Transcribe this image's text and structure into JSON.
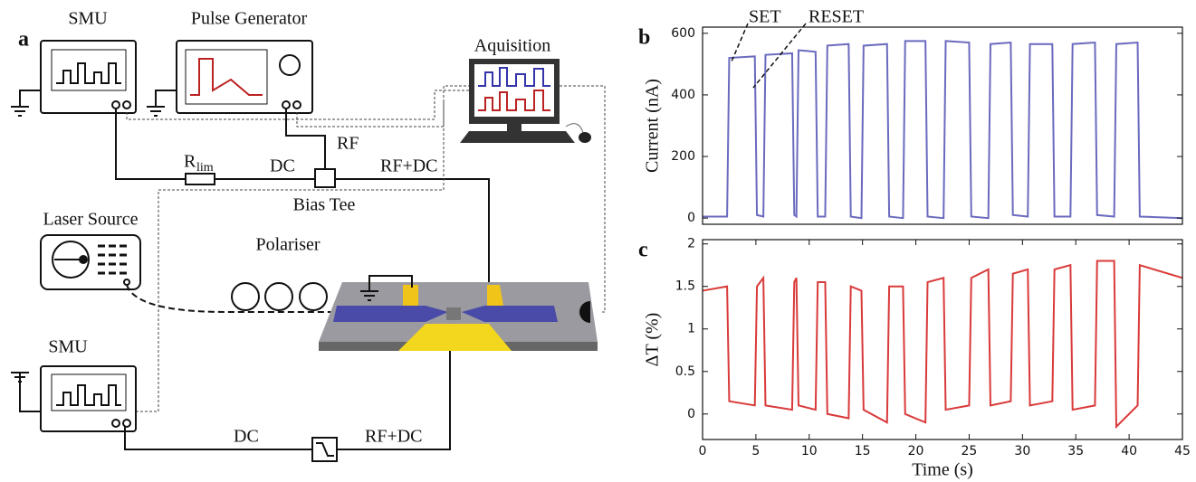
{
  "panel_label": "a",
  "schematic": {
    "smu_top": "SMU",
    "pulse_generator": "Pulse Generator",
    "acquisition": "Aquisition",
    "rf": "RF",
    "r": "R",
    "r_sub": "lim",
    "dc_top": "DC",
    "rf_dc_top": "RF+DC",
    "bias_tee": "Bias Tee",
    "laser_source": "Laser Source",
    "polariser": "Polariser",
    "smu_bottom": "SMU",
    "dc_bottom": "DC",
    "rf_dc_bottom": "RF+DC"
  },
  "chart_data": [
    {
      "type": "line",
      "panel_label": "b",
      "y_label": "Current (nA)",
      "annotations": [
        "SET",
        "RESET"
      ],
      "xlim": [
        0,
        45
      ],
      "ylim": [
        -20,
        620
      ],
      "yticks": [
        0,
        200,
        400,
        600
      ],
      "x": [
        0,
        2.3,
        2.5,
        4.9,
        5.1,
        5.7,
        5.9,
        8.4,
        8.6,
        8.8,
        9.0,
        10.6,
        10.8,
        11.5,
        11.7,
        13.7,
        13.9,
        14.9,
        15.1,
        17.3,
        17.5,
        18.8,
        19.0,
        20.9,
        21.1,
        22.6,
        22.8,
        25.0,
        25.2,
        26.8,
        27.0,
        28.9,
        29.1,
        30.5,
        30.7,
        32.8,
        33.0,
        34.5,
        34.7,
        36.8,
        37.0,
        38.6,
        38.8,
        40.8,
        41.0,
        45
      ],
      "series": [
        {
          "color": "#6a6abf",
          "values": [
            5,
            5,
            520,
            525,
            10,
            5,
            530,
            535,
            10,
            5,
            545,
            540,
            5,
            5,
            560,
            565,
            5,
            0,
            560,
            565,
            5,
            0,
            575,
            575,
            5,
            0,
            575,
            570,
            5,
            0,
            565,
            570,
            10,
            5,
            565,
            565,
            5,
            5,
            565,
            570,
            10,
            5,
            565,
            570,
            5,
            0
          ]
        }
      ]
    },
    {
      "type": "line",
      "panel_label": "c",
      "y_label": "ΔT (%)",
      "x_label": "Time (s)",
      "xlim": [
        0,
        45
      ],
      "ylim": [
        -0.3,
        2.05
      ],
      "yticks": [
        0,
        0.5,
        1,
        1.5,
        2
      ],
      "xticks": [
        0,
        5,
        10,
        15,
        20,
        25,
        30,
        35,
        40,
        45
      ],
      "x": [
        0,
        2.3,
        2.5,
        4.9,
        5.1,
        5.7,
        5.9,
        8.4,
        8.6,
        8.8,
        9.0,
        10.6,
        10.8,
        11.5,
        11.7,
        13.7,
        13.9,
        14.9,
        15.1,
        17.3,
        17.5,
        18.8,
        19.0,
        20.9,
        21.1,
        22.6,
        22.8,
        25.0,
        25.2,
        26.8,
        27.0,
        28.9,
        29.1,
        30.5,
        30.7,
        32.8,
        33.0,
        34.5,
        34.7,
        36.8,
        37.0,
        38.6,
        38.8,
        40.8,
        41.0,
        45
      ],
      "series": [
        {
          "color": "#d93a3a",
          "values": [
            1.45,
            1.5,
            0.15,
            0.1,
            1.5,
            1.6,
            0.1,
            0.05,
            1.55,
            1.6,
            0.1,
            0.05,
            1.55,
            1.55,
            0,
            -0.05,
            1.5,
            1.45,
            0.05,
            -0.1,
            1.5,
            1.5,
            0,
            -0.1,
            1.55,
            1.6,
            0.05,
            0.1,
            1.6,
            1.7,
            0.1,
            0.15,
            1.65,
            1.7,
            0.1,
            0.15,
            1.7,
            1.75,
            0.05,
            0.1,
            1.8,
            1.8,
            -0.15,
            0.1,
            1.75,
            1.6
          ]
        }
      ]
    }
  ]
}
